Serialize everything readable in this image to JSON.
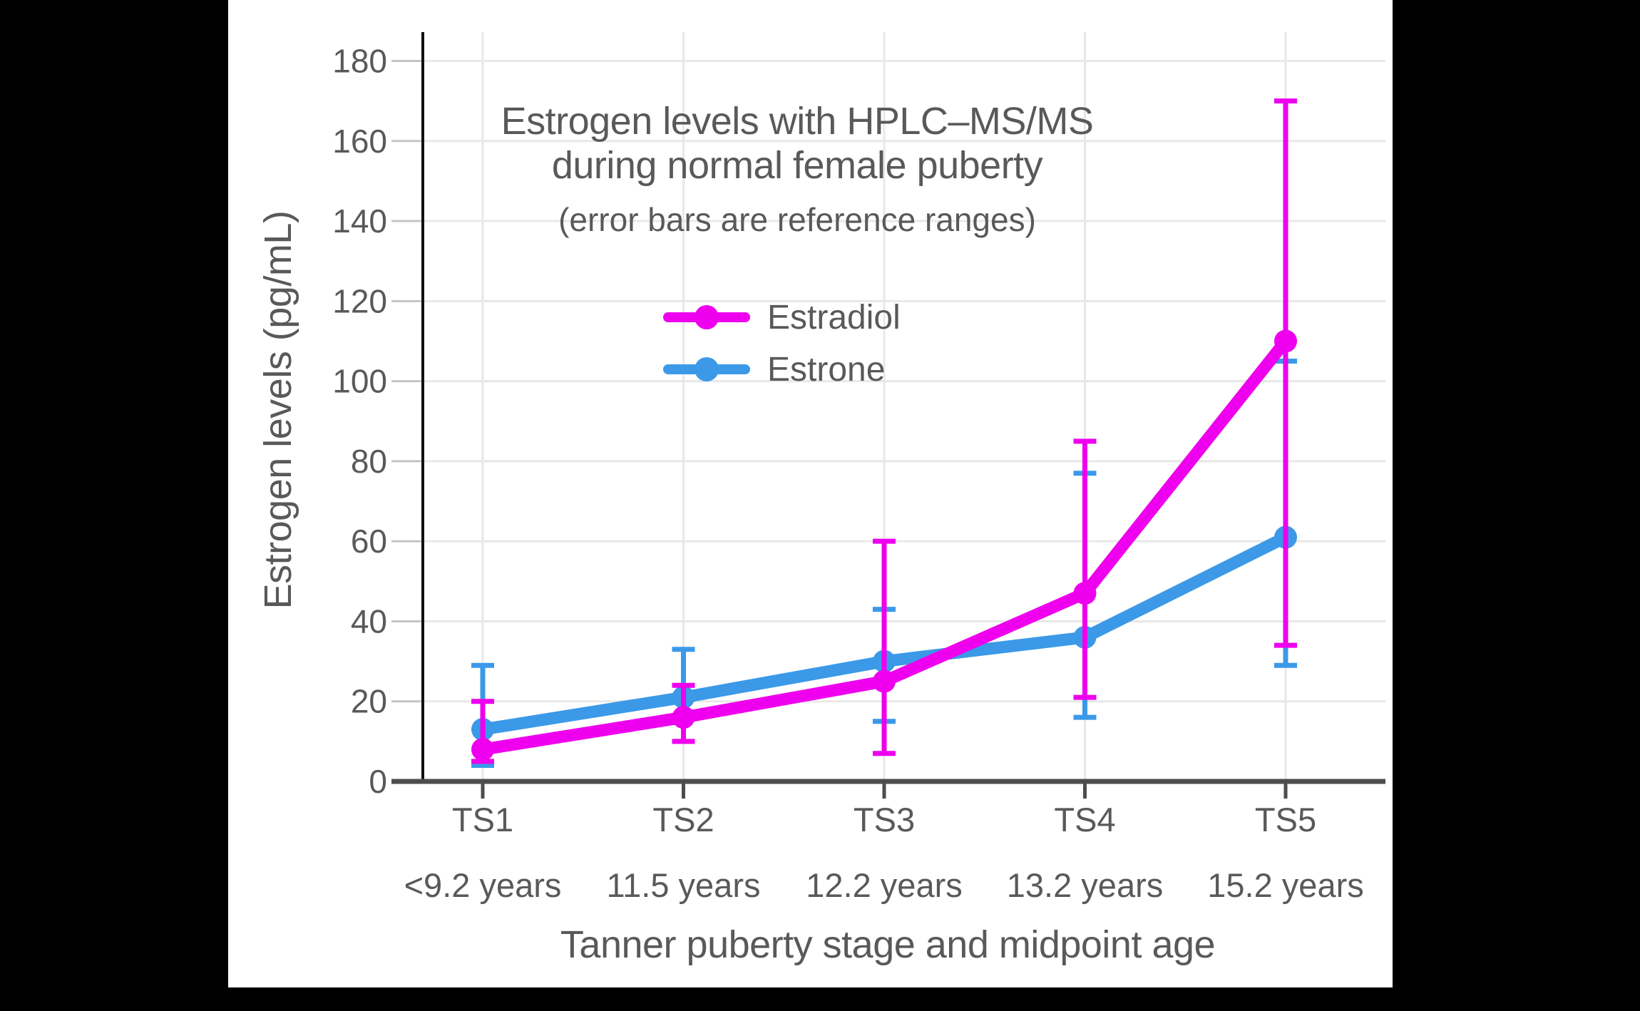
{
  "window": {
    "background_color": "#000000",
    "panel_color": "#ffffff"
  },
  "chart_data": {
    "type": "line",
    "title": "Estrogen levels with HPLC–MS/MS",
    "title_line2": "during normal female puberty",
    "subtitle": "(error bars are reference ranges)",
    "xlabel": "Tanner puberty stage and midpoint age",
    "ylabel": "Estrogen levels (pg/mL)",
    "categories": [
      "TS1",
      "TS2",
      "TS3",
      "TS4",
      "TS5"
    ],
    "category_ages": [
      "<9.2 years",
      "11.5 years",
      "12.2 years",
      "13.2 years",
      "15.2 years"
    ],
    "yticks": [
      0,
      20,
      40,
      60,
      80,
      100,
      120,
      140,
      160,
      180
    ],
    "ylim": [
      0,
      187
    ],
    "grid": true,
    "legend_position": "upper-center",
    "error_bars": "reference ranges",
    "series": [
      {
        "name": "Estrone",
        "color": "#3b99e8",
        "values": [
          13,
          21,
          30,
          36,
          61
        ],
        "error_low": [
          4,
          16,
          15,
          16,
          29
        ],
        "error_high": [
          29,
          33,
          43,
          77,
          105
        ]
      },
      {
        "name": "Estradiol",
        "color": "#ee00ee",
        "values": [
          8,
          16,
          25,
          47,
          110
        ],
        "error_low": [
          5,
          10,
          7,
          21,
          34
        ],
        "error_high": [
          20,
          24,
          60,
          85,
          170
        ]
      }
    ]
  },
  "legend": {
    "items": [
      {
        "label": "Estradiol",
        "color": "#ee00ee"
      },
      {
        "label": "Estrone",
        "color": "#3b99e8"
      }
    ]
  },
  "colors": {
    "text": "#595959",
    "gridline": "#e8e8e8",
    "y_tick": "#c4c4c4",
    "x_axis": "#4d4d4d",
    "y_axis": "#111111",
    "estradiol": "#ee00ee",
    "estrone": "#3b99e8"
  }
}
